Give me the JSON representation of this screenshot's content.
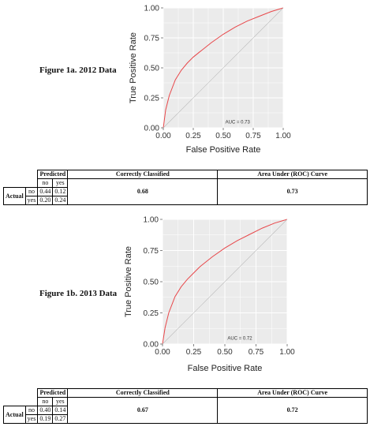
{
  "chart_data": [
    {
      "type": "line",
      "caption": "Figure 1a. 2012 Data",
      "xlabel": "False Positive Rate",
      "ylabel": "True Positive Rate",
      "xlim": [
        0,
        1
      ],
      "ylim": [
        0,
        1
      ],
      "xticks": [
        "0.00",
        "0.25",
        "0.50",
        "0.75",
        "1.00"
      ],
      "yticks": [
        "0.00",
        "0.25",
        "0.50",
        "0.75",
        "1.00"
      ],
      "annotation": "AUC = 0.73",
      "grid": true,
      "series": [
        {
          "color": "#e8474a",
          "x": [
            0,
            0.02,
            0.05,
            0.1,
            0.15,
            0.2,
            0.25,
            0.3,
            0.4,
            0.5,
            0.6,
            0.7,
            0.8,
            0.9,
            1.0
          ],
          "y": [
            0,
            0.15,
            0.27,
            0.4,
            0.48,
            0.54,
            0.59,
            0.63,
            0.71,
            0.78,
            0.84,
            0.89,
            0.93,
            0.97,
            1.0
          ]
        },
        {
          "color": "#bbbbbb",
          "x": [
            0,
            1
          ],
          "y": [
            0,
            1
          ]
        }
      ]
    },
    {
      "type": "line",
      "caption": "Figure 1b. 2013 Data",
      "xlabel": "False Positive Rate",
      "ylabel": "True Positive Rate",
      "xlim": [
        0,
        1
      ],
      "ylim": [
        0,
        1
      ],
      "xticks": [
        "0.00",
        "0.25",
        "0.50",
        "0.75",
        "1.00"
      ],
      "yticks": [
        "0.00",
        "0.25",
        "0.50",
        "0.75",
        "1.00"
      ],
      "annotation": "AUC = 0.72",
      "grid": true,
      "series": [
        {
          "color": "#e8474a",
          "x": [
            0,
            0.02,
            0.05,
            0.1,
            0.15,
            0.2,
            0.25,
            0.3,
            0.4,
            0.5,
            0.6,
            0.7,
            0.8,
            0.9,
            1.0
          ],
          "y": [
            0,
            0.13,
            0.25,
            0.38,
            0.46,
            0.52,
            0.57,
            0.62,
            0.7,
            0.77,
            0.83,
            0.88,
            0.93,
            0.97,
            1.0
          ]
        },
        {
          "color": "#bbbbbb",
          "x": [
            0,
            1
          ],
          "y": [
            0,
            1
          ]
        }
      ]
    }
  ],
  "tables": [
    {
      "predicted": "Predicted",
      "actual": "Actual",
      "no": "no",
      "yes": "yes",
      "correct_header": "Correctly Classified",
      "auc_header": "Area Under (ROC) Curve",
      "row_no": [
        "0.44",
        "0.12"
      ],
      "row_yes": [
        "0.20",
        "0.24"
      ],
      "correct_value": "0.68",
      "auc_value": "0.73"
    },
    {
      "predicted": "Predicted",
      "actual": "Actual",
      "no": "no",
      "yes": "yes",
      "correct_header": "Correctly Classified",
      "auc_header": "Area Under (ROC) Curve",
      "row_no": [
        "0.40",
        "0.14"
      ],
      "row_yes": [
        "0.19",
        "0.27"
      ],
      "correct_value": "0.67",
      "auc_value": "0.72"
    }
  ]
}
